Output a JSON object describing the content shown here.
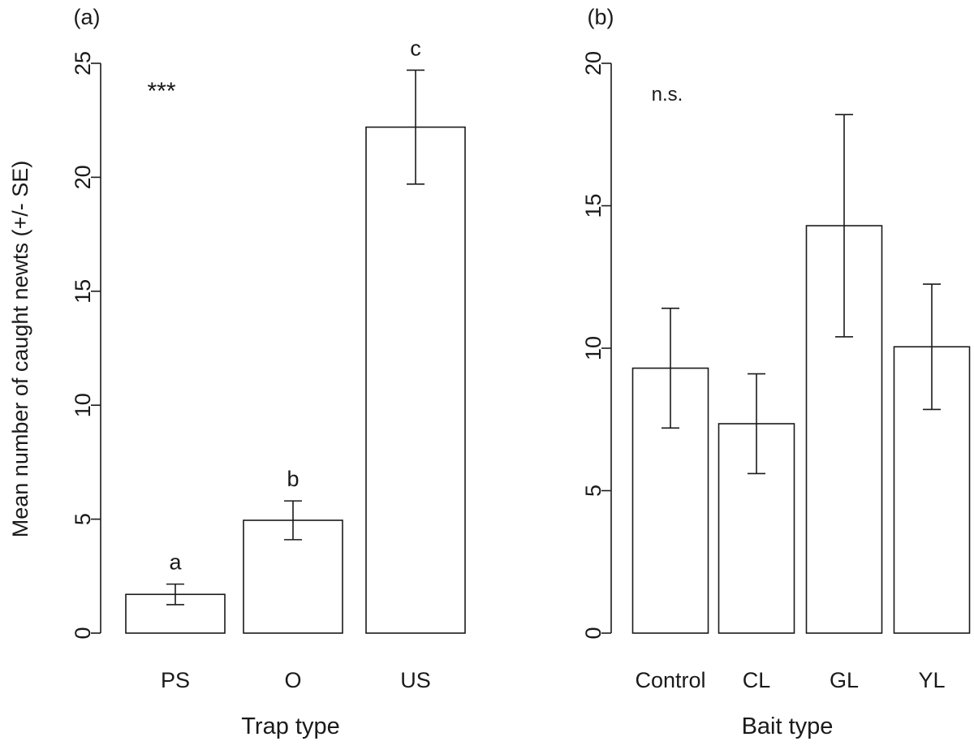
{
  "chart_data": [
    {
      "panel_label": "(a)",
      "type": "bar",
      "categories": [
        "PS",
        "O",
        "US"
      ],
      "values": [
        1.7,
        4.95,
        22.2
      ],
      "errors": [
        0.45,
        0.85,
        2.5
      ],
      "group_letters": [
        "a",
        "b",
        "c"
      ],
      "significance": "***",
      "xlabel": "Trap type",
      "ylabel": "Mean number of caught newts (+/- SE)",
      "ylim": [
        0,
        25
      ],
      "yticks": [
        "0",
        "5",
        "10",
        "15",
        "20",
        "25"
      ],
      "grid": false
    },
    {
      "panel_label": "(b)",
      "type": "bar",
      "categories": [
        "Control",
        "CL",
        "GL",
        "YL"
      ],
      "values": [
        9.3,
        7.35,
        14.3,
        10.05
      ],
      "errors": [
        2.1,
        1.75,
        3.9,
        2.2
      ],
      "significance": "n.s.",
      "xlabel": "Bait type",
      "ylabel": "",
      "ylim": [
        0,
        20
      ],
      "yticks": [
        "0",
        "5",
        "10",
        "15",
        "20"
      ],
      "grid": false
    }
  ]
}
